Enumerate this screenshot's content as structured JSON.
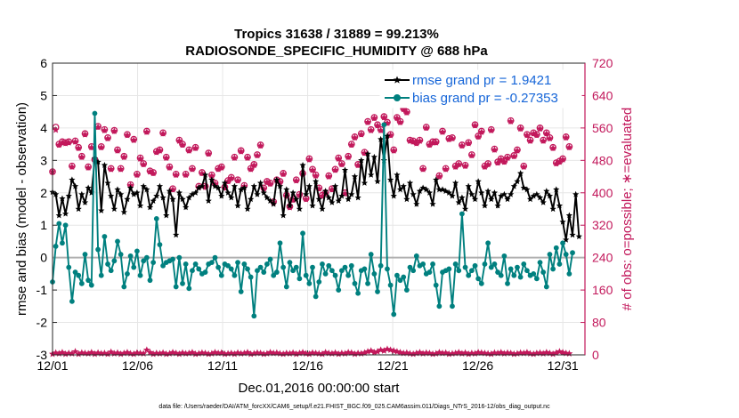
{
  "chart_data": {
    "type": "line",
    "title_line1": "Tropics 31638 / 31889 = 99.213%",
    "title_line2": "RADIOSONDE_SPECIFIC_HUMIDITY @ 688 hPa",
    "xlabel": "Dec.01,2016 00:00:00 start",
    "ylabel": "rmse and bias (model - observation)",
    "y2label": "# of obs: o=possible; ∗=evaluated",
    "footer": "data file: /Users/raeder/DAI/ATM_forcXX/CAM6_setup/f.e21.FHIST_BGC.f09_025.CAM6assim.011/Diags_NTrS_2016-12/obs_diag_output.nc",
    "xlim": [
      1,
      32.3
    ],
    "ylim": [
      -3,
      6
    ],
    "y2lim": [
      0,
      720
    ],
    "x_ticks": [
      1,
      6,
      11,
      16,
      21,
      26,
      31
    ],
    "x_tick_labels": [
      "12/01",
      "12/06",
      "12/11",
      "12/16",
      "12/21",
      "12/26",
      "12/31"
    ],
    "y_ticks": [
      -3,
      -2,
      -1,
      0,
      1,
      2,
      3,
      4,
      5,
      6
    ],
    "y_tick_labels": [
      "-3",
      "-2",
      "-1",
      "0",
      "1",
      "2",
      "3",
      "4",
      "5",
      "6"
    ],
    "y2_ticks": [
      0,
      80,
      160,
      240,
      320,
      400,
      480,
      560,
      640,
      720
    ],
    "y2_tick_labels": [
      "0",
      "80",
      "160",
      "240",
      "320",
      "400",
      "480",
      "560",
      "640",
      "720"
    ],
    "legend": [
      {
        "name": "rmse grand pr = 1.9421",
        "color": "#000000"
      },
      {
        "name": "bias grand pr = -0.27353",
        "color": "#00807f"
      }
    ],
    "colors": {
      "rmse": "#000000",
      "bias": "#00807f",
      "obs": "#c2185b",
      "grid": "#e6e6e6",
      "zero": "#b0b0b0"
    },
    "series": [
      {
        "name": "rmse",
        "values": [
          2.02,
          1.95,
          1.3,
          1.82,
          1.35,
          1.9,
          2.4,
          2.2,
          1.5,
          1.95,
          1.7,
          2.15,
          2.0,
          3.05,
          2.95,
          1.45,
          2.85,
          2.3,
          1.9,
          1.5,
          2.1,
          1.95,
          1.4,
          1.8,
          2.15,
          1.95,
          2.0,
          1.6,
          2.2,
          2.1,
          1.55,
          1.75,
          1.9,
          2.2,
          1.85,
          1.3,
          2.05,
          1.8,
          0.7,
          2.0,
          1.8,
          1.55,
          1.85,
          1.95,
          2.0,
          2.15,
          2.2,
          2.55,
          1.75,
          2.4,
          2.2,
          2.15,
          1.9,
          2.3,
          2.0,
          1.85,
          2.2,
          1.6,
          2.1,
          2.15,
          1.5,
          1.8,
          2.2,
          1.95,
          2.3,
          2.0,
          1.85,
          1.75,
          1.65,
          2.4,
          2.2,
          1.3,
          2.1,
          1.6,
          2.0,
          1.8,
          1.5,
          2.85,
          1.95,
          2.2,
          1.6,
          2.35,
          1.8,
          1.5,
          2.05,
          1.85,
          1.7,
          2.2,
          1.75,
          1.9,
          2.7,
          1.8,
          1.95,
          2.5,
          1.85,
          3.0,
          2.3,
          3.2,
          2.55,
          3.1,
          2.35,
          3.65,
          3.0,
          3.75,
          2.4,
          1.9,
          2.55,
          2.1,
          2.2,
          1.8,
          2.3,
          1.95,
          1.65,
          2.05,
          2.15,
          2.1,
          2.0,
          1.65,
          2.4,
          2.1,
          2.1,
          2.05,
          2.0,
          1.9,
          2.3,
          1.7,
          1.85,
          1.5,
          2.2,
          1.95,
          1.8,
          2.35,
          2.0,
          1.6,
          2.05,
          1.8,
          2.0,
          1.6,
          1.9,
          1.95,
          1.8,
          1.95,
          2.2,
          2.35,
          2.6,
          2.15,
          2.1,
          1.8,
          1.9,
          1.95,
          1.85,
          1.7,
          2.05,
          1.9,
          1.5,
          2.1,
          1.6,
          1.1,
          0.55,
          1.3,
          0.7,
          1.95,
          0.65
        ]
      },
      {
        "name": "bias",
        "values": [
          -0.75,
          0.35,
          1.05,
          0.45,
          1.0,
          -0.3,
          -1.35,
          -0.45,
          -0.55,
          -0.8,
          0.1,
          -0.7,
          -0.85,
          4.45,
          0.25,
          -0.55,
          0.65,
          -0.2,
          -0.4,
          -0.1,
          0.5,
          0.1,
          -0.9,
          -0.5,
          0.05,
          -0.3,
          0.2,
          -0.55,
          -0.1,
          0.0,
          -0.7,
          -0.15,
          1.2,
          0.4,
          -0.25,
          -0.15,
          -0.1,
          -0.05,
          -0.9,
          0.0,
          -0.8,
          -0.2,
          -0.95,
          -0.4,
          -0.2,
          -0.35,
          -0.5,
          -0.45,
          -0.2,
          -0.15,
          0.0,
          -0.3,
          -0.55,
          -0.2,
          -0.25,
          -0.35,
          -0.55,
          -0.15,
          -1.05,
          -0.2,
          -0.35,
          -0.6,
          -1.8,
          -0.4,
          -0.3,
          -0.45,
          -0.2,
          -0.05,
          -0.55,
          -0.45,
          0.45,
          -0.3,
          -0.9,
          -0.15,
          -0.4,
          -0.3,
          -0.65,
          0.75,
          -0.55,
          -0.8,
          -0.3,
          -1.2,
          -0.75,
          -0.2,
          -0.5,
          -0.25,
          -0.4,
          -0.55,
          -1.0,
          -0.4,
          -0.3,
          -0.55,
          -0.25,
          -0.8,
          -1.1,
          -0.4,
          -0.35,
          -0.8,
          0.1,
          -0.5,
          -1.05,
          -0.25,
          4.1,
          -0.35,
          -0.85,
          -1.75,
          -0.55,
          -0.7,
          -0.6,
          -1.0,
          -0.3,
          -0.4,
          0.05,
          -0.25,
          -0.2,
          -0.5,
          -0.45,
          -0.2,
          -0.85,
          -1.5,
          -0.45,
          -0.4,
          -0.35,
          -1.5,
          -0.2,
          -0.4,
          1.35,
          -0.3,
          -0.55,
          -0.4,
          -0.25,
          -0.65,
          -0.8,
          -0.2,
          0.45,
          -0.3,
          -0.2,
          -0.45,
          -0.55,
          0.05,
          -0.8,
          -0.35,
          -0.55,
          -0.3,
          -0.6,
          -0.2,
          -0.4,
          -0.55,
          -0.5,
          -0.65,
          -0.15,
          -0.45,
          -0.9,
          0.1,
          -0.35,
          0.3,
          -0.2,
          0.45,
          0.1,
          -0.5,
          0.15
        ]
      },
      {
        "name": "obs possible",
        "values": [
          452,
          562,
          520,
          526,
          524,
          526,
          466,
          528,
          512,
          490,
          546,
          464,
          514,
          482,
          564,
          514,
          556,
          536,
          460,
          554,
          506,
          460,
          490,
          544,
          420,
          532,
          446,
          486,
          472,
          552,
          454,
          450,
          502,
          506,
          548,
          488,
          464,
          410,
          446,
          530,
          520,
          446,
          506,
          460,
          512,
          416,
          450,
          416,
          498,
          444,
          424,
          460,
          464,
          414,
          430,
          438,
          488,
          432,
          504,
          418,
          488,
          460,
          470,
          494,
          518,
          412,
          428,
          424,
          378,
          432,
          428,
          448,
          394,
          366,
          384,
          432,
          396,
          448,
          386,
          484,
          458,
          444,
          412,
          394,
          400,
          442,
          410,
          458,
          486,
          472,
          400,
          490,
          520,
          538,
          470,
          546,
          500,
          576,
          556,
          586,
          568,
          556,
          588,
          574,
          544,
          506,
          586,
          576,
          608,
          600,
          530,
          528,
          524,
          530,
          460,
          562,
          520,
          526,
          526,
          442,
          552,
          460,
          534,
          536,
          466,
          472,
          518,
          468,
          524,
          494,
          568,
          540,
          552,
          466,
          472,
          556,
          508,
          476,
          484,
          478,
          488,
          578,
          492,
          506,
          560,
          466,
          544,
          530,
          548,
          544,
          560,
          530,
          548,
          536,
          512,
          474,
          478,
          484,
          538,
          514
        ]
      },
      {
        "name": "obs evaluated",
        "values": [
          452,
          555,
          518,
          524,
          522,
          524,
          464,
          526,
          510,
          488,
          544,
          462,
          512,
          480,
          562,
          512,
          554,
          534,
          458,
          552,
          504,
          458,
          488,
          542,
          418,
          530,
          444,
          484,
          470,
          550,
          452,
          448,
          500,
          504,
          546,
          486,
          462,
          408,
          444,
          528,
          518,
          444,
          504,
          458,
          510,
          414,
          448,
          414,
          496,
          442,
          422,
          458,
          462,
          412,
          428,
          436,
          486,
          430,
          502,
          416,
          486,
          458,
          468,
          492,
          516,
          410,
          426,
          422,
          376,
          430,
          426,
          446,
          392,
          364,
          382,
          430,
          394,
          446,
          384,
          482,
          456,
          442,
          410,
          392,
          398,
          440,
          408,
          456,
          484,
          470,
          398,
          488,
          518,
          536,
          468,
          544,
          498,
          574,
          554,
          584,
          566,
          554,
          586,
          572,
          542,
          504,
          584,
          574,
          606,
          598,
          528,
          526,
          522,
          528,
          458,
          560,
          518,
          524,
          524,
          440,
          550,
          458,
          532,
          534,
          464,
          470,
          516,
          466,
          522,
          492,
          566,
          538,
          550,
          464,
          470,
          554,
          506,
          474,
          482,
          476,
          486,
          576,
          490,
          504,
          558,
          464,
          542,
          528,
          546,
          542,
          558,
          528,
          546,
          534,
          510,
          472,
          476,
          482,
          536,
          512
        ]
      },
      {
        "name": "obs low possible",
        "values": [
          2,
          5,
          3,
          6,
          2,
          4,
          3,
          8,
          2,
          5,
          4,
          3,
          6,
          2,
          5,
          3,
          4,
          2,
          7,
          3,
          5,
          2,
          4,
          6,
          3,
          2,
          5,
          4,
          3,
          12,
          6,
          2,
          4,
          3,
          5,
          2,
          3,
          6,
          4,
          2,
          5,
          3,
          4,
          6,
          2,
          3,
          5,
          4,
          2,
          3,
          6,
          4,
          5,
          2,
          3,
          4,
          2,
          5,
          3,
          4,
          6,
          2,
          3,
          5,
          4,
          2,
          3,
          6,
          4,
          5,
          3,
          2,
          4,
          3,
          5,
          2,
          4,
          6,
          3,
          2,
          5,
          4,
          3,
          2,
          6,
          4,
          3,
          5,
          2,
          4,
          3,
          6,
          5,
          2,
          4,
          3,
          5,
          8,
          10,
          6,
          8,
          12,
          10,
          14,
          12,
          10,
          8,
          6,
          4,
          5,
          3,
          2,
          4,
          6,
          3,
          5,
          4,
          2,
          3,
          6,
          4,
          5,
          2,
          3,
          4,
          6,
          3,
          5,
          2,
          4,
          3,
          6,
          5,
          4,
          3,
          2,
          5,
          4,
          6,
          3,
          5,
          4,
          2,
          3,
          5,
          4,
          6,
          3,
          2,
          4,
          5,
          3,
          6,
          4,
          2,
          5,
          8,
          6,
          4,
          3
        ]
      }
    ]
  }
}
